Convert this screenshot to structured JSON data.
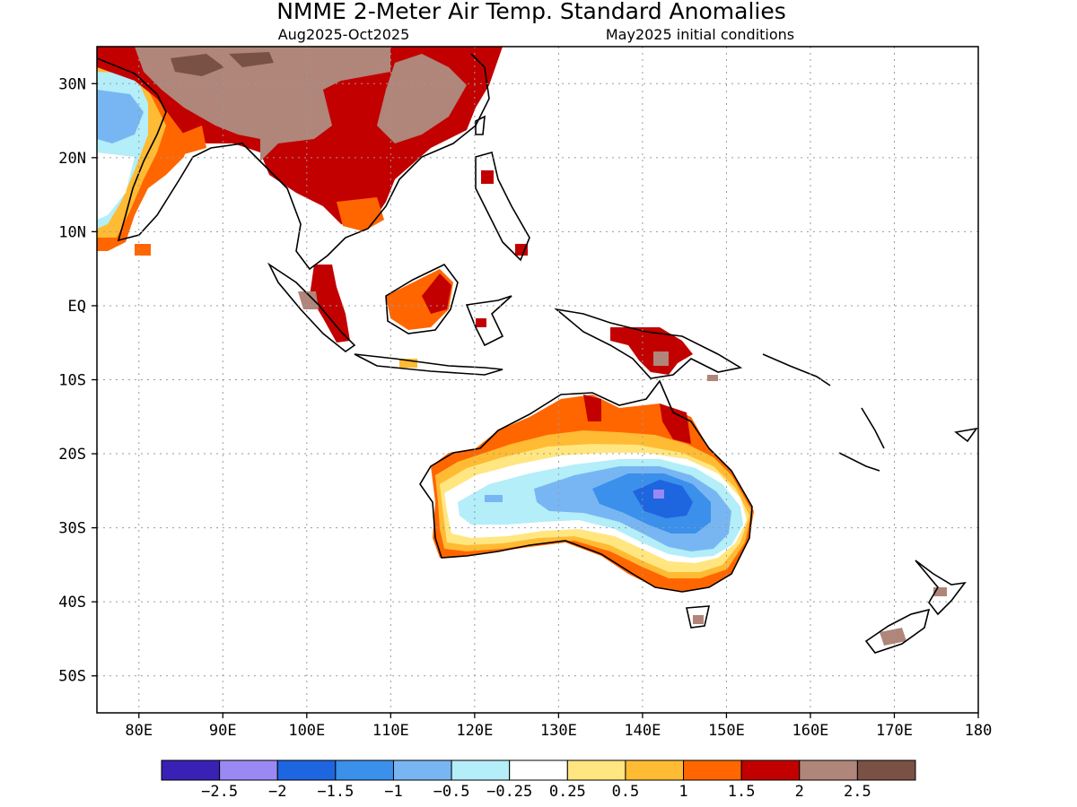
{
  "title": "NMME 2-Meter Air Temp. Standard Anomalies",
  "subtitle_left": "Aug2025-Oct2025",
  "subtitle_right": "May2025 initial conditions",
  "axes": {
    "lat_labels": [
      "30N",
      "20N",
      "10N",
      "EQ",
      "10S",
      "20S",
      "30S",
      "40S",
      "50S"
    ],
    "lat_values": [
      30,
      20,
      10,
      0,
      -10,
      -20,
      -30,
      -40,
      -50
    ],
    "lon_labels": [
      "80E",
      "90E",
      "100E",
      "110E",
      "120E",
      "130E",
      "140E",
      "150E",
      "160E",
      "170E",
      "180"
    ],
    "lon_values": [
      80,
      90,
      100,
      110,
      120,
      130,
      140,
      150,
      160,
      170,
      180
    ],
    "lon_range": [
      75,
      180
    ],
    "lat_range": [
      -55,
      35
    ],
    "grid": "dotted"
  },
  "colorbar": {
    "colors": [
      "#3a21b6",
      "#9b89f3",
      "#1e65e0",
      "#3a90ea",
      "#78b6f3",
      "#b3eef9",
      "#ffffff",
      "#ffe680",
      "#ffbb33",
      "#ff6600",
      "#c20000",
      "#b0857a",
      "#7a5145"
    ],
    "labels": [
      "-2.5",
      "-2",
      "-1.5",
      "-1",
      "-0.5",
      "-0.25",
      "0.25",
      "0.5",
      "1",
      "1.5",
      "2",
      "2.5"
    ]
  },
  "regions": [
    {
      "name": "Tibetan Plateau / South China",
      "category": ">2.5"
    },
    {
      "name": "Southern China",
      "category": "1.5 to 2"
    },
    {
      "name": "Indochina",
      "category": "1.5 to 2"
    },
    {
      "name": "Western India",
      "category": "-1 to -0.5"
    },
    {
      "name": "Borneo",
      "category": "1 to 2"
    },
    {
      "name": "Sumatra",
      "category": "1.5 to 2"
    },
    {
      "name": "New Guinea",
      "category": "1.5 to 2"
    },
    {
      "name": "Northern Australia",
      "category": "0.5 to 2"
    },
    {
      "name": "Central Australia",
      "category": "-1.5 to -0.25"
    },
    {
      "name": "Southern Australia",
      "category": "0.25 to 1.5"
    },
    {
      "name": "New Zealand",
      "category": "2 to 2.5"
    }
  ]
}
